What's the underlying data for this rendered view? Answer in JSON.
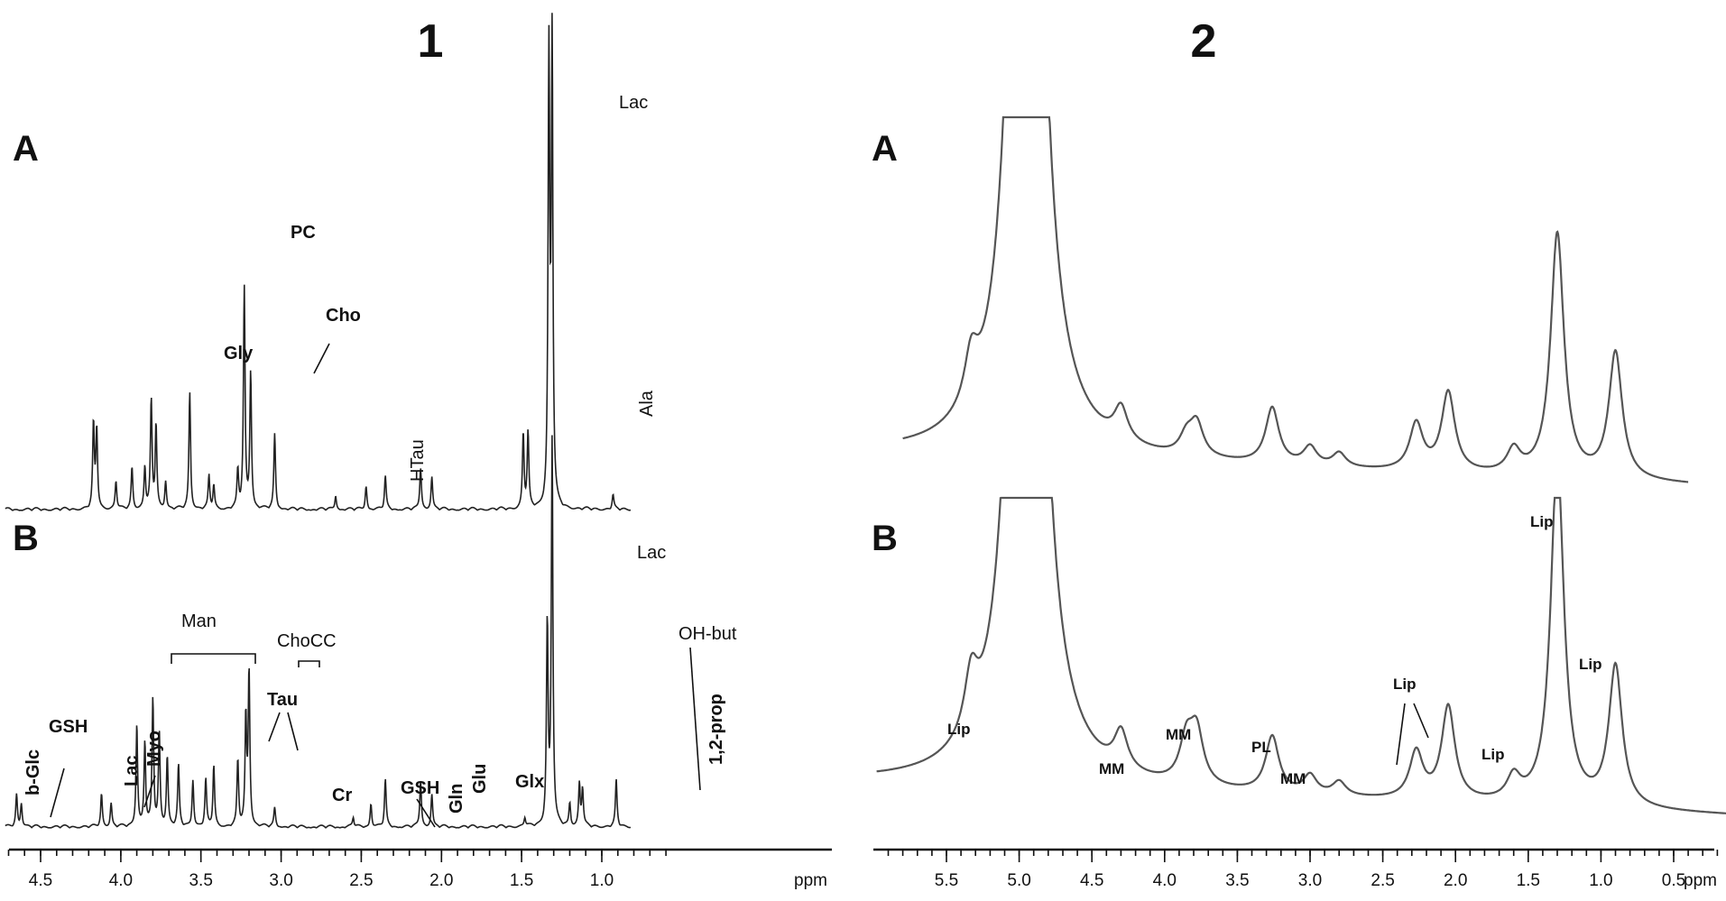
{
  "figure": {
    "panel1_title": "1",
    "panel2_title": "2",
    "colors": {
      "spectrum_left": "#222222",
      "spectrum_right": "#555555",
      "axis": "#111111"
    }
  },
  "chart_data": [
    {
      "type": "line",
      "title": "1",
      "xlabel": "ppm",
      "xlim": [
        5.0,
        0.5
      ],
      "x_reversed": true,
      "ticks": [
        "4.5",
        "4.0",
        "3.5",
        "3.0",
        "2.5",
        "2.0",
        "1.5",
        "1.0"
      ],
      "series": [
        {
          "name": "A",
          "peaks": [
            {
              "ppm": 4.17,
              "height": 0.18
            },
            {
              "ppm": 4.15,
              "height": 0.17
            },
            {
              "ppm": 4.03,
              "height": 0.06
            },
            {
              "ppm": 3.93,
              "height": 0.09
            },
            {
              "ppm": 3.85,
              "height": 0.09
            },
            {
              "ppm": 3.81,
              "height": 0.23
            },
            {
              "ppm": 3.78,
              "height": 0.18
            },
            {
              "ppm": 3.72,
              "height": 0.06
            },
            {
              "ppm": 3.57,
              "height": 0.25
            },
            {
              "ppm": 3.45,
              "height": 0.07
            },
            {
              "ppm": 3.42,
              "height": 0.05
            },
            {
              "ppm": 3.27,
              "height": 0.08
            },
            {
              "ppm": 3.23,
              "height": 0.47
            },
            {
              "ppm": 3.19,
              "height": 0.29
            },
            {
              "ppm": 3.04,
              "height": 0.16
            },
            {
              "ppm": 2.66,
              "height": 0.03
            },
            {
              "ppm": 2.47,
              "height": 0.05
            },
            {
              "ppm": 2.35,
              "height": 0.07
            },
            {
              "ppm": 2.13,
              "height": 0.09
            },
            {
              "ppm": 2.06,
              "height": 0.07
            },
            {
              "ppm": 1.49,
              "height": 0.16
            },
            {
              "ppm": 1.46,
              "height": 0.16
            },
            {
              "ppm": 1.33,
              "height": 0.95
            },
            {
              "ppm": 1.31,
              "height": 0.98
            },
            {
              "ppm": 0.93,
              "height": 0.03
            }
          ],
          "labels": [
            {
              "text": "Gly",
              "ppm": 3.57
            },
            {
              "text": "PC",
              "ppm": 3.23
            },
            {
              "text": "Cho",
              "ppm": 3.19
            },
            {
              "text": "HTau",
              "ppm": 2.66
            },
            {
              "text": "Ala",
              "ppm": 1.47
            },
            {
              "text": "Lac",
              "ppm": 1.32
            }
          ]
        },
        {
          "name": "B",
          "peaks": [
            {
              "ppm": 4.65,
              "height": 0.07
            },
            {
              "ppm": 4.62,
              "height": 0.05
            },
            {
              "ppm": 4.12,
              "height": 0.07
            },
            {
              "ppm": 4.06,
              "height": 0.05
            },
            {
              "ppm": 3.9,
              "height": 0.22
            },
            {
              "ppm": 3.85,
              "height": 0.18
            },
            {
              "ppm": 3.8,
              "height": 0.27
            },
            {
              "ppm": 3.76,
              "height": 0.2
            },
            {
              "ppm": 3.71,
              "height": 0.15
            },
            {
              "ppm": 3.64,
              "height": 0.13
            },
            {
              "ppm": 3.55,
              "height": 0.1
            },
            {
              "ppm": 3.47,
              "height": 0.1
            },
            {
              "ppm": 3.42,
              "height": 0.13
            },
            {
              "ppm": 3.27,
              "height": 0.14
            },
            {
              "ppm": 3.22,
              "height": 0.23
            },
            {
              "ppm": 3.2,
              "height": 0.33
            },
            {
              "ppm": 3.04,
              "height": 0.04
            },
            {
              "ppm": 2.55,
              "height": 0.02
            },
            {
              "ppm": 2.44,
              "height": 0.05
            },
            {
              "ppm": 2.35,
              "height": 0.1
            },
            {
              "ppm": 2.13,
              "height": 0.1
            },
            {
              "ppm": 2.06,
              "height": 0.07
            },
            {
              "ppm": 1.48,
              "height": 0.02
            },
            {
              "ppm": 1.34,
              "height": 0.43
            },
            {
              "ppm": 1.31,
              "height": 0.82
            },
            {
              "ppm": 1.2,
              "height": 0.05
            },
            {
              "ppm": 1.14,
              "height": 0.09
            },
            {
              "ppm": 1.12,
              "height": 0.08
            },
            {
              "ppm": 0.91,
              "height": 0.1
            }
          ],
          "labels": [
            {
              "text": "b-Glc",
              "ppm": 4.65
            },
            {
              "text": "GSH",
              "ppm": 4.58
            },
            {
              "text": "Lac",
              "ppm": 4.12
            },
            {
              "text": "Myo",
              "ppm": 4.06
            },
            {
              "text": "Man",
              "ppm": 3.78
            },
            {
              "text": "Tau",
              "ppm": 3.35
            },
            {
              "text": "ChoCC",
              "ppm": 3.21
            },
            {
              "text": "Cr",
              "ppm": 3.04
            },
            {
              "text": "GSH",
              "ppm": 2.55
            },
            {
              "text": "Gln",
              "ppm": 2.44
            },
            {
              "text": "Glu",
              "ppm": 2.35
            },
            {
              "text": "Glx",
              "ppm": 2.1
            },
            {
              "text": "Lac",
              "ppm": 1.32
            },
            {
              "text": "OH-but",
              "ppm": 1.2
            },
            {
              "text": "1,2-prop",
              "ppm": 1.14
            }
          ]
        }
      ]
    },
    {
      "type": "line",
      "title": "2",
      "xlabel": "ppm",
      "xlim": [
        6.0,
        0.0
      ],
      "x_reversed": true,
      "ticks": [
        "5.5",
        "5.0",
        "4.5",
        "4.0",
        "3.5",
        "3.0",
        "2.5",
        "2.0",
        "1.5",
        "1.0",
        "0.5"
      ],
      "series": [
        {
          "name": "A",
          "peaks": [
            {
              "ppm": 5.33,
              "height": 0.1
            },
            {
              "ppm": 4.3,
              "height": 0.07
            },
            {
              "ppm": 3.85,
              "height": 0.04
            },
            {
              "ppm": 3.78,
              "height": 0.07
            },
            {
              "ppm": 3.26,
              "height": 0.12
            },
            {
              "ppm": 3.0,
              "height": 0.04
            },
            {
              "ppm": 2.8,
              "height": 0.03
            },
            {
              "ppm": 2.27,
              "height": 0.1
            },
            {
              "ppm": 2.05,
              "height": 0.17
            },
            {
              "ppm": 1.6,
              "height": 0.05
            },
            {
              "ppm": 1.3,
              "height": 0.52
            },
            {
              "ppm": 0.9,
              "height": 0.27
            }
          ],
          "labels": []
        },
        {
          "name": "B",
          "peaks": [
            {
              "ppm": 5.33,
              "height": 0.12
            },
            {
              "ppm": 4.3,
              "height": 0.08
            },
            {
              "ppm": 3.85,
              "height": 0.09
            },
            {
              "ppm": 3.78,
              "height": 0.11
            },
            {
              "ppm": 3.26,
              "height": 0.12
            },
            {
              "ppm": 3.0,
              "height": 0.04
            },
            {
              "ppm": 2.8,
              "height": 0.03
            },
            {
              "ppm": 2.27,
              "height": 0.1
            },
            {
              "ppm": 2.05,
              "height": 0.2
            },
            {
              "ppm": 1.6,
              "height": 0.05
            },
            {
              "ppm": 1.3,
              "height": 0.74
            },
            {
              "ppm": 0.9,
              "height": 0.3
            }
          ],
          "labels": [
            {
              "text": "Lip",
              "ppm": 5.33
            },
            {
              "text": "MM",
              "ppm": 4.3
            },
            {
              "text": "MM",
              "ppm": 3.8
            },
            {
              "text": "PL",
              "ppm": 3.26
            },
            {
              "text": "MM",
              "ppm": 3.0
            },
            {
              "text": "Lip",
              "ppm": 2.15
            },
            {
              "text": "Lip",
              "ppm": 1.6
            },
            {
              "text": "Lip",
              "ppm": 1.3
            },
            {
              "text": "Lip",
              "ppm": 0.9
            }
          ]
        }
      ]
    }
  ]
}
